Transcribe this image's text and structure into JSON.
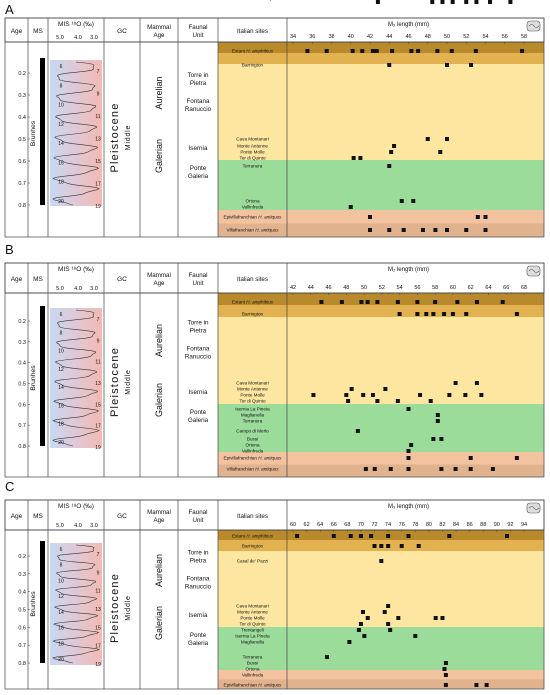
{
  "headers": {
    "age": "Age",
    "ms": "MS",
    "mis": "MIS ¹⁸O (‰)",
    "gc": "GC",
    "mammal_age": [
      "Mammal",
      "Age"
    ],
    "faunal_unit": [
      "Faunal",
      "Unit"
    ],
    "italian_sites": "Italian sites"
  },
  "left": {
    "age_ticks": [
      "0.2",
      "0.3",
      "0.4",
      "0.5",
      "0.6",
      "0.7",
      "0.8"
    ],
    "brunhes": "Brunhes",
    "mis_scale": [
      "5.0",
      "4.0",
      "3.0"
    ],
    "mis_stage_left": [
      "6",
      "8",
      "10",
      "12",
      "14",
      "16",
      "18",
      "20"
    ],
    "mis_stage_right": [
      "7",
      "9",
      "11",
      "13",
      "15",
      "17",
      "19"
    ],
    "gc_main": "Pleistocene",
    "gc_sub": "Middle",
    "mammal_ages": [
      "Aurelian",
      "Galerian"
    ],
    "faunal_units": [
      [
        "Torre in",
        "Pietra"
      ],
      [
        "Fontana",
        "Ranuccio"
      ],
      [
        "Isernia"
      ],
      [
        "Ponte",
        "Galeria"
      ]
    ]
  },
  "colors": {
    "extant": "#b88a2c",
    "barrington": "#e1b24f",
    "aurelian": "#fde7a0",
    "galerian": "#9bdc9b",
    "epivilla": "#f3c3a0",
    "villa": "#e0b38e",
    "mis_cold": "#c9d8f5",
    "mis_warm": "#f4b9b3",
    "marker": "#111111"
  },
  "chart_data": [
    {
      "panel": "A",
      "type": "scatter",
      "title": "M₃ length (mm)",
      "xlim": [
        34,
        58
      ],
      "xticks": [
        34,
        36,
        38,
        40,
        42,
        44,
        46,
        48,
        50,
        52,
        54,
        56,
        58
      ],
      "rows": [
        {
          "site": "Extant H. amphibius",
          "band": "extant",
          "x": [
            35.5,
            37.5,
            40.2,
            41.2,
            42.3,
            42.7,
            44.3,
            46.3,
            47,
            49,
            50.5,
            53,
            57.8
          ]
        },
        {
          "site": "Barrington",
          "band": "barrington",
          "x": [
            44,
            50,
            52.5
          ]
        },
        {
          "site": "Cava Montanari",
          "band": "aurelian",
          "x": [
            48,
            50
          ]
        },
        {
          "site": "Monte Antenne",
          "band": "aurelian",
          "x": [
            44.5
          ]
        },
        {
          "site": "Ponte Molle",
          "band": "aurelian",
          "x": [
            44.2,
            49.3
          ]
        },
        {
          "site": "Tor di Quinto",
          "band": "aurelian",
          "x": [
            40.3,
            41
          ]
        },
        {
          "site": "Terranera",
          "band": "galerian",
          "x": [
            44
          ]
        },
        {
          "site": "Ortona",
          "band": "galerian",
          "x": [
            45.3,
            46.5
          ]
        },
        {
          "site": "Vallinfreda",
          "band": "galerian",
          "x": [
            40
          ]
        },
        {
          "site": "Epivillafranchian H. antiquus",
          "band": "epivilla",
          "x": [
            42,
            53.2,
            54
          ]
        },
        {
          "site": "Villafranchian H. antiquus",
          "band": "villa",
          "x": [
            42,
            44,
            45.5,
            47.5,
            48.8,
            50,
            52,
            54
          ]
        }
      ]
    },
    {
      "panel": "B",
      "type": "scatter",
      "title": "M₂ length (mm)",
      "xlim": [
        42,
        68
      ],
      "xticks": [
        42,
        44,
        46,
        48,
        50,
        52,
        54,
        56,
        58,
        60,
        62,
        64,
        66,
        68
      ],
      "rows": [
        {
          "site": "Extant H. amphibius",
          "band": "extant",
          "x": [
            45.2,
            47.5,
            49.7,
            50.4,
            51.5,
            53.8,
            56,
            58,
            60.5,
            62.7,
            65.6
          ]
        },
        {
          "site": "Barrington",
          "band": "barrington",
          "x": [
            54,
            56,
            57,
            57.8,
            59,
            60,
            61.5,
            67.2
          ]
        },
        {
          "site": "Cava Montanari",
          "band": "aurelian",
          "x": [
            60.3,
            62.7
          ]
        },
        {
          "site": "Monte Antenne",
          "band": "aurelian",
          "x": [
            48.6,
            52.4
          ]
        },
        {
          "site": "Ponte Molle",
          "band": "aurelian",
          "x": [
            44.3,
            48,
            49.9,
            51,
            56.3,
            59.6,
            61.4,
            63.2
          ]
        },
        {
          "site": "Tor di Quinto",
          "band": "aurelian",
          "x": [
            48.2,
            51.5,
            53.8,
            57.5
          ]
        },
        {
          "site": "Isernia La Pineta",
          "band": "galerian",
          "x": [
            55
          ]
        },
        {
          "site": "Maglianella",
          "band": "galerian",
          "x": [
            58.3
          ]
        },
        {
          "site": "Terranera",
          "band": "galerian",
          "x": [
            58.3
          ]
        },
        {
          "site": "Campo di Merlo",
          "band": "galerian",
          "x": [
            49.3
          ]
        },
        {
          "site": "Bussi",
          "band": "galerian",
          "x": [
            57.8,
            58.7
          ]
        },
        {
          "site": "Ortona",
          "band": "galerian",
          "x": [
            55.3
          ]
        },
        {
          "site": "Vallinfreda",
          "band": "galerian",
          "x": [
            55
          ]
        },
        {
          "site": "Epivillafranchian H. antiquus",
          "band": "epivilla",
          "x": [
            55,
            62,
            67.2
          ]
        },
        {
          "site": "Villafranchian H. antiquus",
          "band": "villa",
          "x": [
            50.2,
            51.2,
            53,
            55,
            58.7,
            60.3,
            62,
            64.5
          ]
        }
      ]
    },
    {
      "panel": "C",
      "type": "scatter",
      "title": "M₃ length (mm)",
      "xlim": [
        60,
        94
      ],
      "xticks": [
        60,
        62,
        64,
        66,
        68,
        70,
        72,
        74,
        76,
        78,
        80,
        82,
        84,
        86,
        88,
        90,
        92,
        94
      ],
      "rows": [
        {
          "site": "Extant H. amphibius",
          "band": "extant",
          "x": [
            60.6,
            66,
            68.5,
            70,
            71.5,
            74,
            77,
            83,
            91.5
          ]
        },
        {
          "site": "Barrington",
          "band": "barrington",
          "x": [
            72,
            73,
            74,
            76,
            78.5
          ]
        },
        {
          "site": "Casal de' Pazzi",
          "band": "aurelian",
          "x": [
            73
          ]
        },
        {
          "site": "Cava Montanari",
          "band": "aurelian",
          "x": [
            74
          ]
        },
        {
          "site": "Monte Antenne",
          "band": "aurelian",
          "x": [
            70.3,
            73.5
          ]
        },
        {
          "site": "Ponte Molle",
          "band": "aurelian",
          "x": [
            71,
            75.5,
            81,
            82
          ]
        },
        {
          "site": "Tor di Quinto",
          "band": "aurelian",
          "x": [
            70,
            74
          ]
        },
        {
          "site": "Trentangeli",
          "band": "aurelian",
          "x": [
            69.7,
            74.3
          ]
        },
        {
          "site": "Isernia La Pineta",
          "band": "galerian",
          "x": [
            70.5,
            78
          ]
        },
        {
          "site": "Maglianella",
          "band": "galerian",
          "x": [
            68.3
          ]
        },
        {
          "site": "Terranera",
          "band": "galerian",
          "x": [
            65
          ]
        },
        {
          "site": "Bussi",
          "band": "galerian",
          "x": [
            82.5
          ]
        },
        {
          "site": "Ortona",
          "band": "galerian",
          "x": [
            82.3
          ]
        },
        {
          "site": "Vallinfreda",
          "band": "galerian",
          "x": [
            82.5
          ]
        },
        {
          "site": "Epivillafranchian H. antiquus",
          "band": "epivilla",
          "x": [
            82.5,
            87,
            88.5
          ]
        },
        {
          "site": "Villafranchian H. antiquus",
          "band": "villa",
          "x": [
            72.5,
            80.5,
            82,
            83.5,
            85.5,
            87,
            89,
            92
          ]
        }
      ]
    }
  ]
}
